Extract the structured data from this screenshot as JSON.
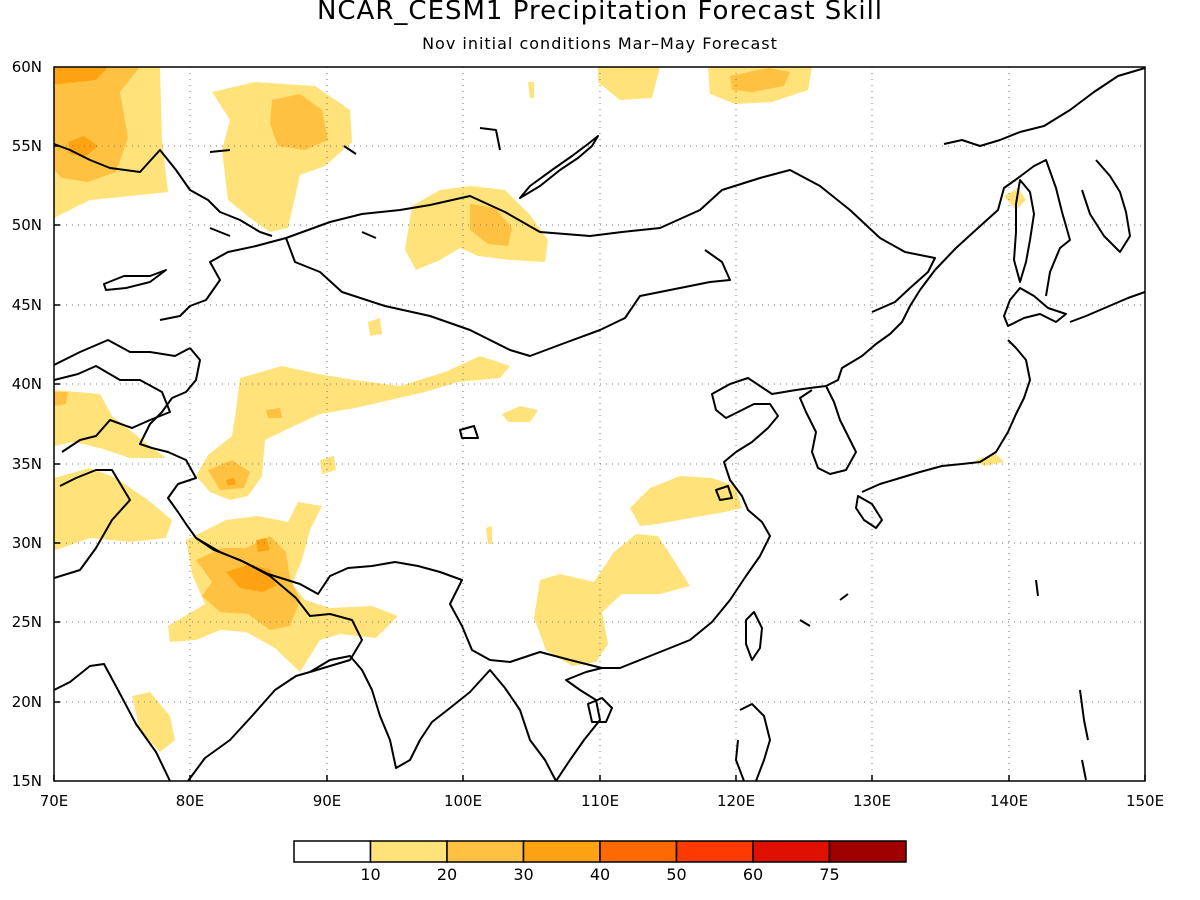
{
  "title": "NCAR_CESM1 Precipitation Forecast Skill",
  "subtitle": "Nov initial conditions  Mar–May Forecast",
  "axes": {
    "lon_labels": [
      "70E",
      "80E",
      "90E",
      "100E",
      "110E",
      "120E",
      "130E",
      "140E",
      "150E"
    ],
    "lat_labels": [
      "15N",
      "20N",
      "25N",
      "30N",
      "35N",
      "40N",
      "45N",
      "50N",
      "55N",
      "60N"
    ],
    "grid": "dotted"
  },
  "colorbar": {
    "labels": [
      "10",
      "20",
      "30",
      "40",
      "50",
      "60",
      "75"
    ],
    "colors": [
      "#ffffff",
      "#ffe27a",
      "#ffc142",
      "#ffa313",
      "#ff6a00",
      "#ff3a00",
      "#e01000",
      "#a00000"
    ]
  },
  "shading_colors": {
    "level_10": "#ffe27a",
    "level_20": "#ffc142",
    "level_30": "#ffa313",
    "level_40": "#ff6a00"
  }
}
